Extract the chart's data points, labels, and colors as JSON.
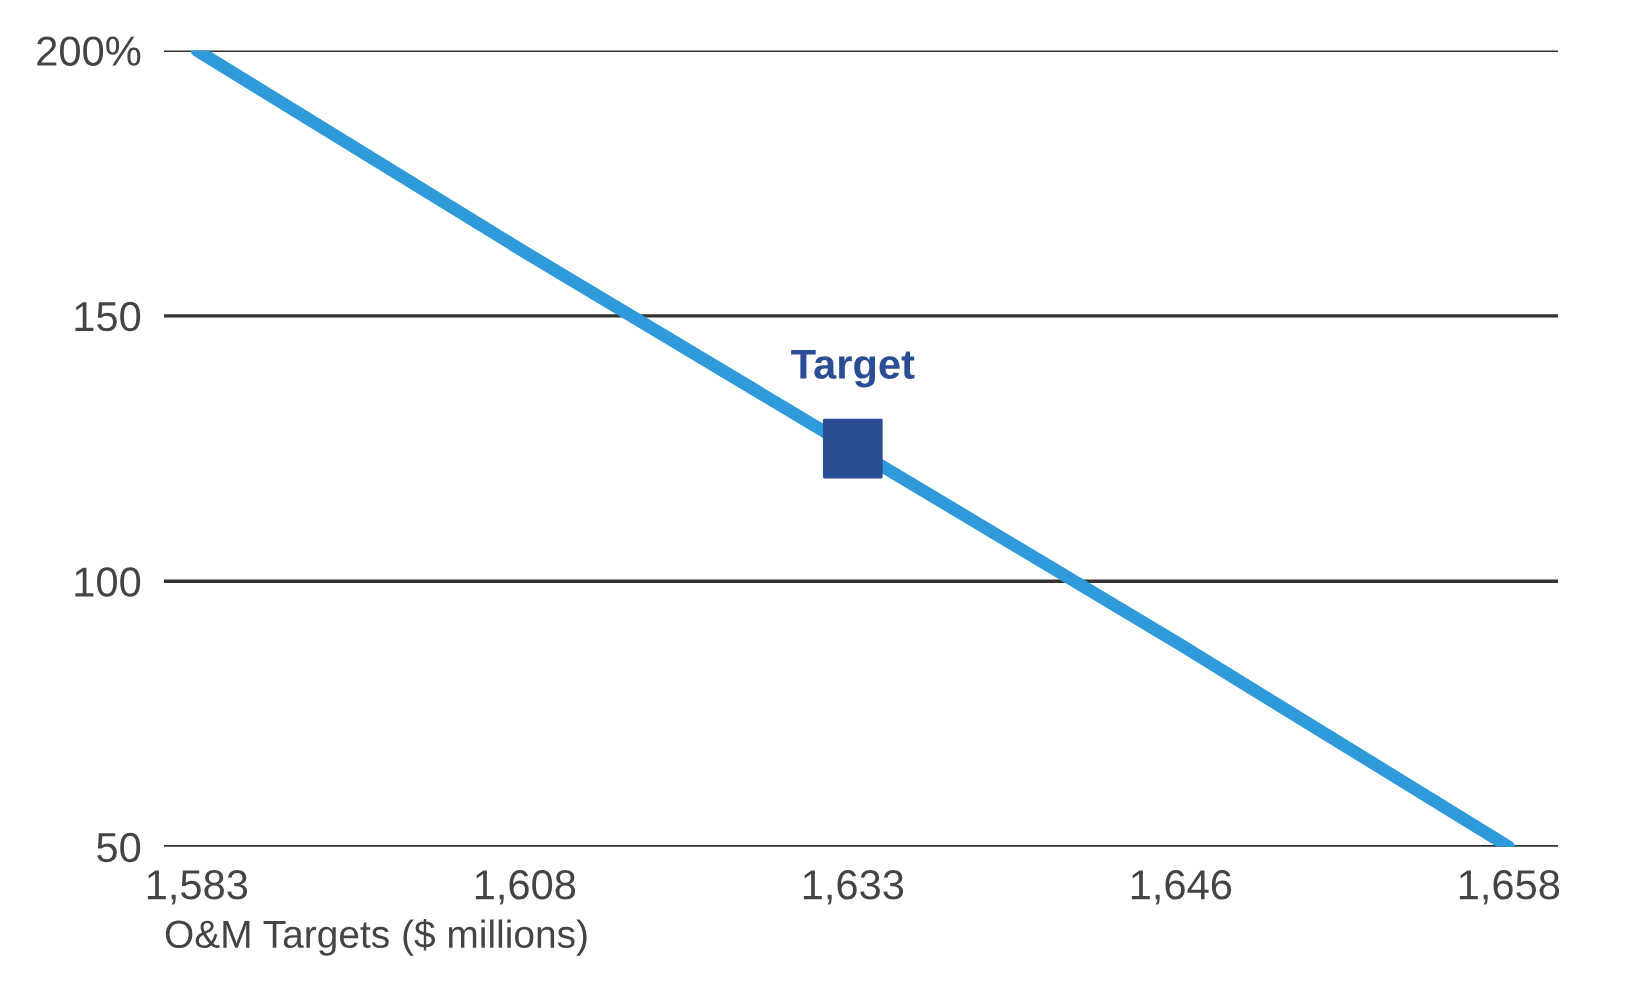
{
  "chart_data": {
    "type": "line",
    "xlabel": "O&M Targets ($ millions)",
    "categories": [
      "1,583",
      "1,608",
      "1,633",
      "1,646",
      "1,658"
    ],
    "series": [
      {
        "color": "#2e9ad9",
        "values": [
          200,
          162,
          125,
          88,
          50
        ],
        "marker": "none"
      },
      {
        "type": "scatter",
        "name": "Target",
        "color": "#2b4d94",
        "x": [
          "1,633"
        ],
        "values": [
          125
        ],
        "marker": "square"
      }
    ],
    "ylim": [
      50,
      200
    ],
    "yticks": [
      50,
      100,
      150,
      {
        "value": 200,
        "label": "200%"
      }
    ],
    "grid": "y",
    "legend": false
  }
}
